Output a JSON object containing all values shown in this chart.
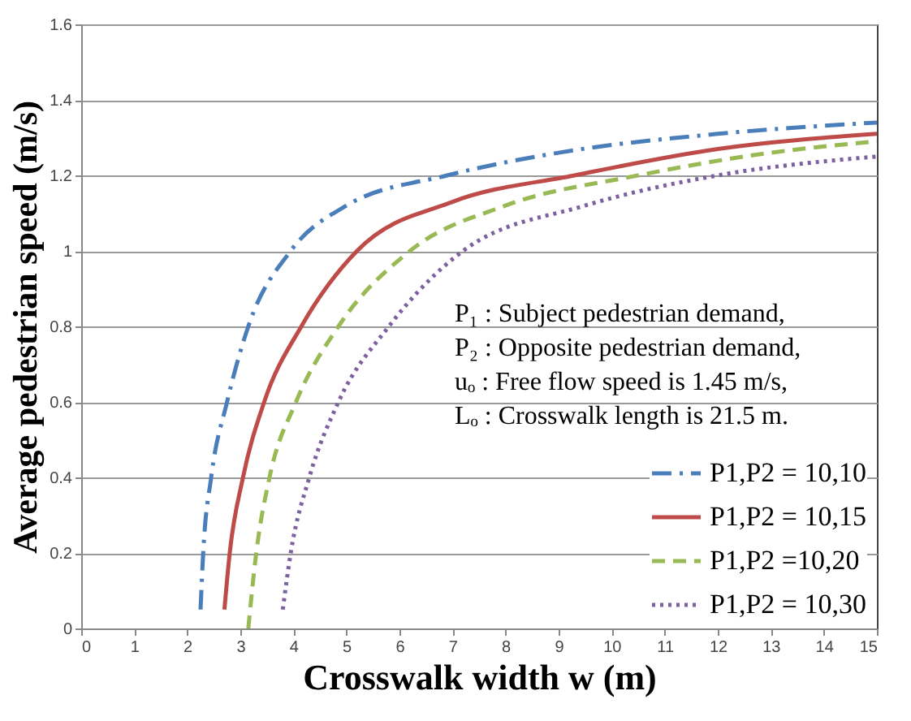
{
  "chart_data": {
    "type": "line",
    "xlabel": "Crosswalk width w (m)",
    "ylabel": "Average pedestrian speed (m/s)",
    "xlim": [
      0,
      15
    ],
    "xticks": [
      0,
      1,
      2,
      3,
      4,
      5,
      6,
      7,
      8,
      9,
      10,
      11,
      12,
      13,
      14,
      15
    ],
    "ylim": [
      0,
      1.6
    ],
    "yticks": [
      0,
      0.2,
      0.4,
      0.6,
      0.8,
      1,
      1.2,
      1.4,
      1.6
    ],
    "grid": "y",
    "legend": "bottom right",
    "marker": "none",
    "annotations": [
      "P₁ : Subject pedestrian demand,",
      "P₂ : Opposite pedestrian demand,",
      "uₒ : Free flow speed is 1.45 m/s,",
      "Lₒ : Crosswalk length is 21.5 m."
    ],
    "series": [
      {
        "name": "P1,P2 = 10,10",
        "color": "#4a7ebb",
        "line_style": "dashdot",
        "x": [
          2.25,
          2.3,
          2.45,
          2.75,
          3.15,
          3.95,
          5,
          6.9,
          9,
          12,
          15
        ],
        "values": [
          0.05,
          0.2,
          0.4,
          0.6,
          0.8,
          1.0,
          1.12,
          1.2,
          1.26,
          1.31,
          1.34
        ]
      },
      {
        "name": "P1,P2 = 10,15",
        "color": "#be4b48",
        "line_style": "solid",
        "x": [
          2.7,
          2.8,
          3.05,
          3.45,
          4.15,
          5.2,
          7,
          9.3,
          12,
          15
        ],
        "values": [
          0.05,
          0.2,
          0.4,
          0.6,
          0.8,
          1.0,
          1.13,
          1.2,
          1.27,
          1.31
        ]
      },
      {
        "name": "P1,P2 =10,20",
        "color": "#98b954",
        "line_style": "dashed",
        "x": [
          3.15,
          3.3,
          3.55,
          4.05,
          4.85,
          6.2,
          8,
          10.5,
          13,
          15
        ],
        "values": [
          0.0,
          0.2,
          0.4,
          0.6,
          0.8,
          1.0,
          1.12,
          1.2,
          1.26,
          1.29
        ]
      },
      {
        "name": "P1,P2 = 10,30",
        "color": "#7d60a0",
        "line_style": "dotted",
        "x": [
          3.8,
          3.95,
          4.3,
          4.85,
          5.8,
          7.2,
          9.5,
          12,
          15
        ],
        "values": [
          0.05,
          0.2,
          0.4,
          0.6,
          0.8,
          1.0,
          1.12,
          1.2,
          1.25
        ]
      }
    ]
  }
}
